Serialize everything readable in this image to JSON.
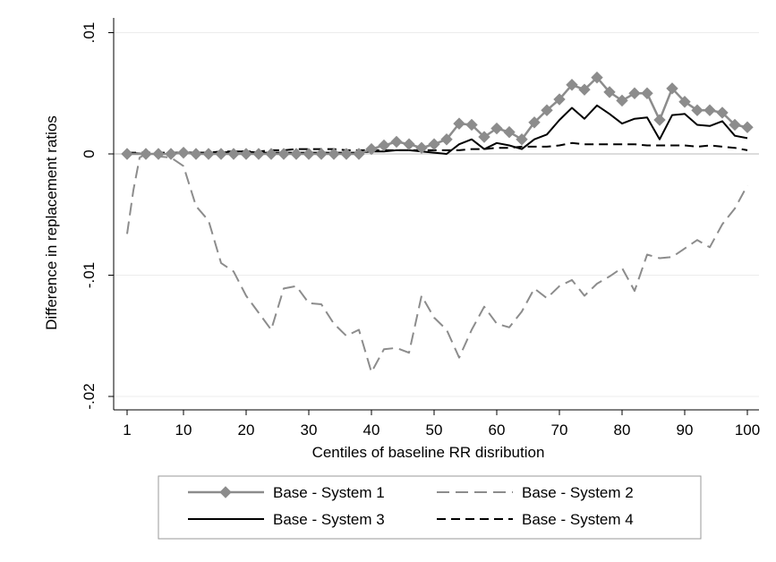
{
  "chart_data": {
    "type": "line",
    "xlabel": "Centiles of baseline RR disribution",
    "ylabel": "Difference in replacement ratios",
    "xlim": [
      1,
      100
    ],
    "ylim": [
      -0.02,
      0.01
    ],
    "x_ticks": [
      1,
      10,
      20,
      30,
      40,
      50,
      60,
      70,
      80,
      90,
      100
    ],
    "x_tick_labels": [
      "1",
      "10",
      "20",
      "30",
      "40",
      "50",
      "60",
      "70",
      "80",
      "90",
      "100"
    ],
    "y_ticks": [
      0.01,
      0,
      -0.01,
      -0.02
    ],
    "y_tick_labels": [
      ".01",
      "0",
      "-.01",
      "-.02"
    ],
    "grid": "horizontal",
    "legend_position": "bottom",
    "series": [
      {
        "name": "Base - System 1",
        "color": "#8c8c8c",
        "dash": "solid",
        "marker": "diamond",
        "x": [
          1,
          4,
          6,
          8,
          10,
          12,
          14,
          16,
          18,
          20,
          22,
          24,
          26,
          28,
          30,
          32,
          34,
          36,
          38,
          40,
          42,
          44,
          46,
          48,
          50,
          52,
          54,
          56,
          58,
          60,
          62,
          64,
          66,
          68,
          70,
          72,
          74,
          76,
          78,
          80,
          82,
          84,
          86,
          88,
          90,
          92,
          94,
          96,
          98,
          100
        ],
        "y": [
          0,
          0,
          0,
          0,
          0.0001,
          0,
          0,
          0,
          0,
          0,
          0,
          0,
          0,
          0,
          0,
          0,
          0,
          0,
          0,
          0.0004,
          0.0007,
          0.001,
          0.0008,
          0.0005,
          0.0008,
          0.0012,
          0.0025,
          0.0024,
          0.0014,
          0.0021,
          0.0018,
          0.0012,
          0.0026,
          0.0036,
          0.0045,
          0.0057,
          0.0053,
          0.0063,
          0.0051,
          0.0044,
          0.005,
          0.005,
          0.0028,
          0.0054,
          0.0043,
          0.0036,
          0.0036,
          0.0034,
          0.0024,
          0.0022
        ]
      },
      {
        "name": "Base - System 2",
        "color": "#8c8c8c",
        "dash": "dashed",
        "marker": "none",
        "x": [
          1,
          2,
          3,
          4,
          6,
          8,
          10,
          12,
          14,
          16,
          18,
          20,
          22,
          24,
          26,
          28,
          30,
          32,
          34,
          36,
          38,
          40,
          42,
          44,
          46,
          48,
          50,
          52,
          54,
          56,
          58,
          60,
          62,
          64,
          66,
          68,
          70,
          72,
          74,
          76,
          78,
          80,
          82,
          84,
          86,
          88,
          90,
          92,
          94,
          96,
          98,
          100
        ],
        "y": [
          -0.0066,
          -0.003,
          -0.0003,
          0.0,
          -0.0002,
          -0.0003,
          -0.001,
          -0.0043,
          -0.0055,
          -0.009,
          -0.0097,
          -0.0117,
          -0.0131,
          -0.0145,
          -0.0111,
          -0.0109,
          -0.0123,
          -0.0124,
          -0.014,
          -0.015,
          -0.0145,
          -0.018,
          -0.0161,
          -0.016,
          -0.0164,
          -0.0117,
          -0.0135,
          -0.0145,
          -0.0168,
          -0.0145,
          -0.0126,
          -0.014,
          -0.0143,
          -0.013,
          -0.0111,
          -0.0119,
          -0.0109,
          -0.0104,
          -0.0117,
          -0.0107,
          -0.0101,
          -0.0094,
          -0.0113,
          -0.0083,
          -0.0086,
          -0.0085,
          -0.0078,
          -0.0071,
          -0.0077,
          -0.0058,
          -0.0045,
          -0.0026
        ]
      },
      {
        "name": "Base - System 3",
        "color": "#000000",
        "dash": "solid",
        "marker": "none",
        "x": [
          1,
          4,
          6,
          8,
          10,
          12,
          14,
          16,
          18,
          20,
          22,
          24,
          26,
          28,
          30,
          32,
          34,
          36,
          38,
          40,
          42,
          44,
          46,
          48,
          50,
          52,
          54,
          56,
          58,
          60,
          62,
          64,
          66,
          68,
          70,
          72,
          74,
          76,
          78,
          80,
          82,
          84,
          86,
          88,
          90,
          92,
          94,
          96,
          98,
          100
        ],
        "y": [
          0.0001,
          0,
          0,
          0,
          0.0001,
          0.0001,
          0.0001,
          0.0001,
          0.0002,
          0.0002,
          0.0001,
          0.0001,
          0.0001,
          0.0001,
          0.0001,
          0.0001,
          0.0001,
          0.0001,
          0.0001,
          0.0002,
          0.0002,
          0.0003,
          0.0003,
          0.0002,
          0.0001,
          0.0,
          0.0008,
          0.0012,
          0.0004,
          0.0009,
          0.0007,
          0.0004,
          0.0012,
          0.0016,
          0.0028,
          0.0038,
          0.0029,
          0.004,
          0.0033,
          0.0025,
          0.0029,
          0.003,
          0.0012,
          0.0032,
          0.0033,
          0.0024,
          0.0023,
          0.0027,
          0.0015,
          0.0013
        ]
      },
      {
        "name": "Base - System 4",
        "color": "#000000",
        "dash": "dashed",
        "marker": "none",
        "x": [
          1,
          4,
          6,
          8,
          10,
          12,
          14,
          16,
          18,
          20,
          22,
          24,
          26,
          28,
          30,
          32,
          34,
          36,
          38,
          40,
          42,
          44,
          46,
          48,
          50,
          52,
          54,
          56,
          58,
          60,
          62,
          64,
          66,
          68,
          70,
          72,
          74,
          76,
          78,
          80,
          82,
          84,
          86,
          88,
          90,
          92,
          94,
          96,
          98,
          100
        ],
        "y": [
          0.0001,
          0.0001,
          0.0001,
          0.0001,
          0.0001,
          0.0001,
          0.0001,
          0.0002,
          0.0002,
          0.0002,
          0.0002,
          0.0003,
          0.0003,
          0.0004,
          0.0004,
          0.0004,
          0.0004,
          0.0003,
          0.0003,
          0.0003,
          0.0003,
          0.0003,
          0.0003,
          0.0003,
          0.0003,
          0.0003,
          0.0003,
          0.0004,
          0.0004,
          0.0005,
          0.0005,
          0.0006,
          0.0006,
          0.0006,
          0.0007,
          0.0009,
          0.0008,
          0.0008,
          0.0008,
          0.0008,
          0.0008,
          0.0007,
          0.0007,
          0.0007,
          0.0007,
          0.0006,
          0.0007,
          0.0006,
          0.0005,
          0.0003
        ]
      }
    ]
  }
}
